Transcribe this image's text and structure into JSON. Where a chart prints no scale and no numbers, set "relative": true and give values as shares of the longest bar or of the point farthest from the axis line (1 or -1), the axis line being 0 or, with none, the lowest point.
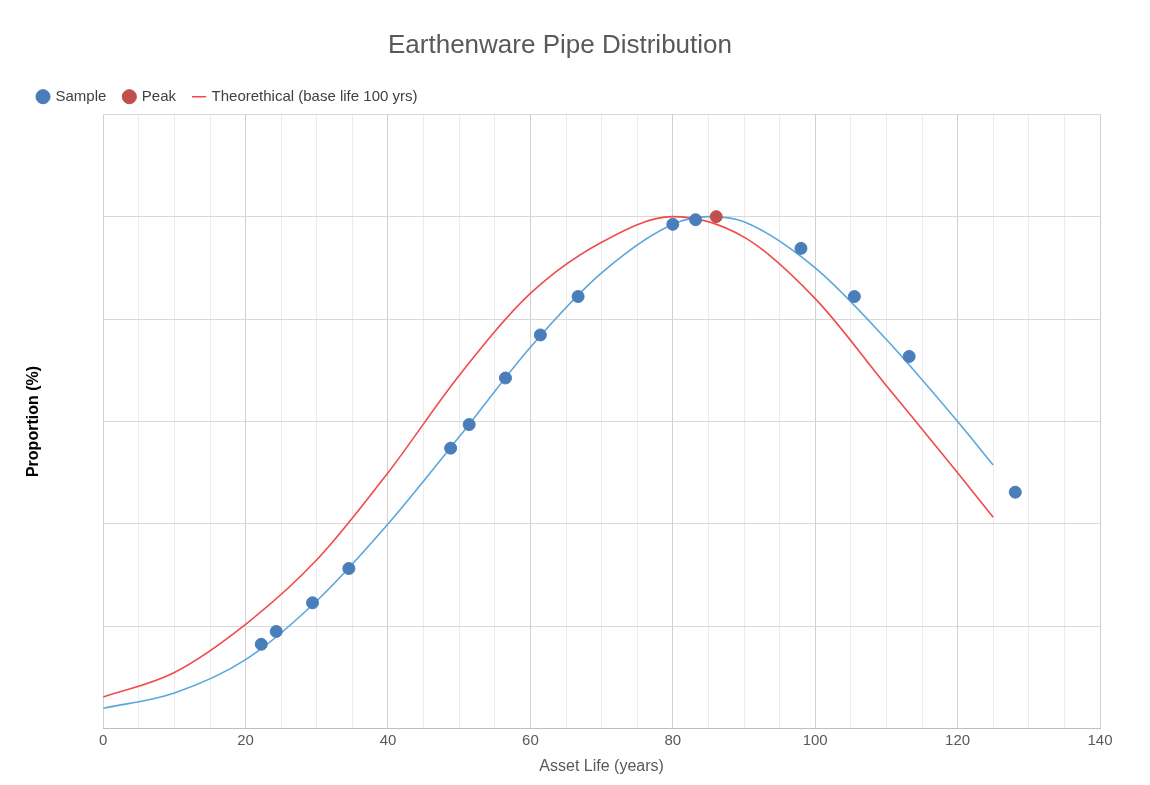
{
  "chart_data": {
    "type": "scatter",
    "title": "Earthenware Pipe Distribution",
    "xlabel": "Asset Life (years)",
    "ylabel": "Proportion (%)",
    "relative": true,
    "xlim": [
      0,
      140
    ],
    "xticks": [
      0,
      {
        "value": 5,
        "label": null
      },
      {
        "value": 10,
        "label": null
      },
      {
        "value": 15,
        "label": null
      },
      20,
      {
        "value": 25,
        "label": null
      },
      {
        "value": 30,
        "label": null
      },
      {
        "value": 35,
        "label": null
      },
      40,
      {
        "value": 45,
        "label": null
      },
      {
        "value": 50,
        "label": null
      },
      {
        "value": 55,
        "label": null
      },
      60,
      {
        "value": 65,
        "label": null
      },
      {
        "value": 70,
        "label": null
      },
      {
        "value": 75,
        "label": null
      },
      80,
      {
        "value": 85,
        "label": null
      },
      {
        "value": 90,
        "label": null
      },
      {
        "value": 95,
        "label": null
      },
      100,
      {
        "value": 105,
        "label": null
      },
      {
        "value": 110,
        "label": null
      },
      {
        "value": 115,
        "label": null
      },
      120,
      {
        "value": 125,
        "label": null
      },
      {
        "value": 130,
        "label": null
      },
      {
        "value": 135,
        "label": null
      },
      140
    ],
    "grid": true,
    "legend": "top left",
    "marker": "circle",
    "series": [
      {
        "name": "Sample",
        "color": "#4a7ebb",
        "x": [
          22.2,
          24.3,
          29.4,
          34.5,
          48.8,
          51.4,
          56.5,
          61.4,
          66.7,
          80.0,
          83.2,
          98.0,
          105.5,
          113.2,
          128.1
        ],
        "values": [
          0.165,
          0.19,
          0.246,
          0.313,
          0.548,
          0.594,
          0.685,
          0.769,
          0.844,
          0.985,
          0.994,
          0.938,
          0.844,
          0.727,
          0.462
        ]
      },
      {
        "name": "Peak",
        "color": "#c0504d",
        "x": [
          86.1
        ],
        "values": [
          1.0
        ]
      },
      {
        "name": "Theorethical (base life 100 yrs)",
        "type": "line",
        "marker": "none",
        "color": "#f24a4a",
        "x": [
          0,
          10,
          20,
          30,
          40,
          50,
          60,
          70,
          80,
          90,
          100,
          110,
          120,
          125
        ],
        "values": [
          0.062,
          0.11,
          0.204,
          0.33,
          0.5,
          0.69,
          0.85,
          0.95,
          1.0,
          0.96,
          0.84,
          0.67,
          0.5,
          0.413
        ]
      },
      {
        "type": "line",
        "marker": "none",
        "color": "#5aa7dc",
        "x": [
          0,
          10,
          20,
          30,
          40,
          50,
          60,
          70,
          80,
          85,
          90,
          100,
          110,
          120,
          125
        ],
        "values": [
          0.04,
          0.07,
          0.135,
          0.25,
          0.4,
          0.57,
          0.745,
          0.89,
          0.985,
          1.0,
          0.99,
          0.9,
          0.76,
          0.6,
          0.515
        ]
      }
    ]
  }
}
